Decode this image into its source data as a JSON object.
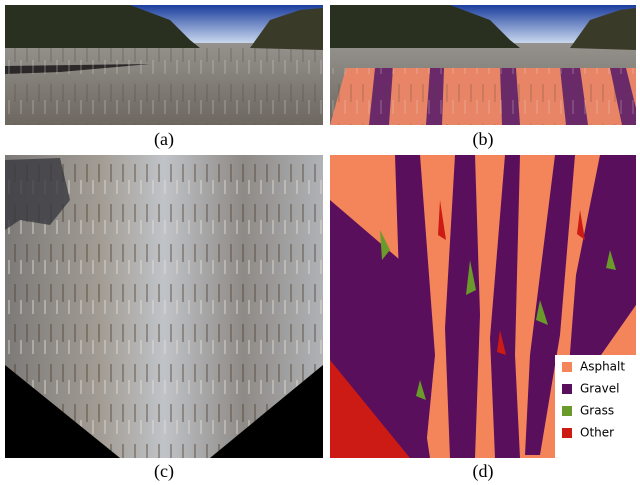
{
  "panels": [
    {
      "caption": "(a)"
    },
    {
      "caption": "(b)"
    },
    {
      "caption": "(c)"
    },
    {
      "caption": "(d)"
    }
  ],
  "legend": [
    {
      "name": "Asphalt",
      "color": "#f4855a"
    },
    {
      "name": "Gravel",
      "color": "#5a0f5c"
    },
    {
      "name": "Grass",
      "color": "#6a9a2a"
    },
    {
      "name": "Other",
      "color": "#cc1a14"
    }
  ]
}
